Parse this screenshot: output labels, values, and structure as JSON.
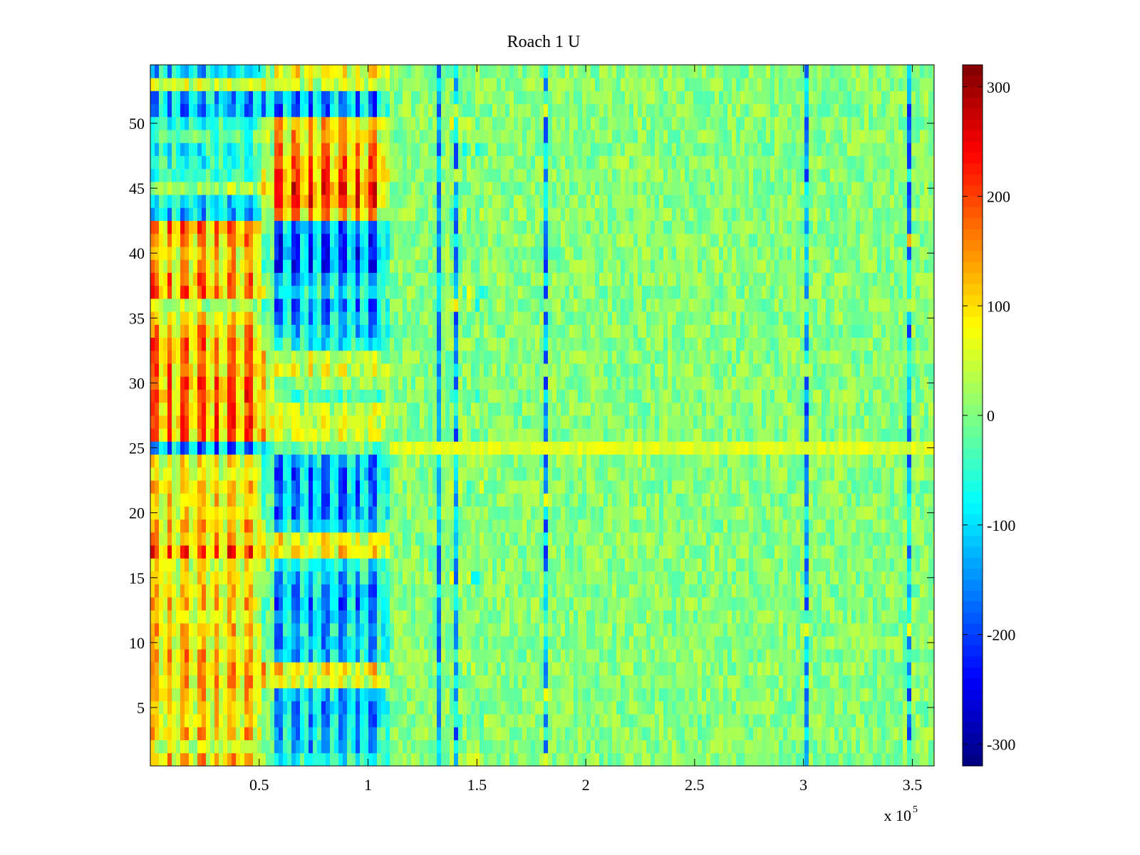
{
  "chart_data": {
    "type": "heatmap",
    "title": "Roach 1 U",
    "xlabel": "",
    "ylabel": "",
    "x_exponent_label": "x 10",
    "x_exponent_power": "5",
    "xlim": [
      0,
      3.6
    ],
    "ylim": [
      0.5,
      54.5
    ],
    "rows": 54,
    "x_ticks": [
      0.5,
      1,
      1.5,
      2,
      2.5,
      3,
      3.5
    ],
    "x_tick_labels": [
      "0.5",
      "1",
      "1.5",
      "2",
      "2.5",
      "3",
      "3.5"
    ],
    "y_ticks": [
      5,
      10,
      15,
      20,
      25,
      30,
      35,
      40,
      45,
      50
    ],
    "y_tick_labels": [
      "5",
      "10",
      "15",
      "20",
      "25",
      "30",
      "35",
      "40",
      "45",
      "50"
    ],
    "colorbar": {
      "colormap": "jet",
      "limits": [
        -320,
        320
      ],
      "ticks": [
        300,
        200,
        100,
        0,
        -100,
        -200,
        -300
      ],
      "tick_labels": [
        "300",
        "200",
        "100",
        "0",
        "-100",
        "-200",
        "-300"
      ]
    },
    "row_base_early": [
      150,
      60,
      150,
      120,
      110,
      150,
      160,
      160,
      160,
      120,
      150,
      110,
      150,
      140,
      140,
      100,
      230,
      150,
      150,
      110,
      120,
      130,
      90,
      100,
      -200,
      200,
      220,
      200,
      230,
      210,
      200,
      190,
      200,
      160,
      130,
      40,
      210,
      200,
      150,
      140,
      170,
      200,
      -150,
      -130,
      40,
      -60,
      -90,
      -110,
      -40,
      -90,
      -180,
      -170,
      60,
      -150
    ],
    "row_base_mid": [
      -100,
      -160,
      -150,
      -180,
      -180,
      -150,
      80,
      120,
      -150,
      -160,
      -160,
      -180,
      -200,
      -180,
      -150,
      -100,
      120,
      110,
      -140,
      -200,
      -180,
      -200,
      -210,
      -180,
      -20,
      90,
      90,
      60,
      -30,
      20,
      80,
      60,
      -100,
      -150,
      -170,
      -200,
      -100,
      -160,
      -240,
      -240,
      -240,
      -200,
      150,
      240,
      260,
      210,
      200,
      170,
      160,
      140,
      -200,
      -200,
      70,
      110
    ],
    "late_columns": [
      1.4,
      1.57,
      1.82,
      2.06,
      2.3,
      2.53,
      2.77,
      3.01,
      3.26,
      3.49
    ],
    "late_columns_b": [
      1.33
    ],
    "notes": "Heatmap of row index (1-54) vs sample index (x 10^5). Strong alternating +/- values before ~1.05e5 (red/blue stripes), near-zero noise afterwards with periodic vertical spikes."
  }
}
